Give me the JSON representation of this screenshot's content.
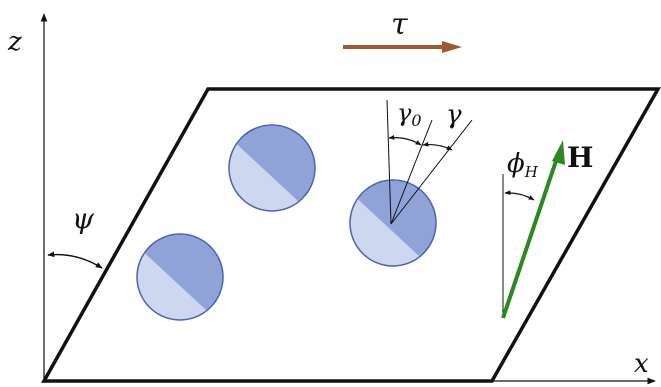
{
  "labels": {
    "z_axis": "z",
    "x_axis": "x",
    "tau": "τ",
    "psi": "ψ",
    "gamma0_main": "γ",
    "gamma0_sub": "0",
    "gamma": "γ",
    "phi_main": "ϕ",
    "phi_sub": "H",
    "H": "H"
  },
  "colors": {
    "line": "#111111",
    "tau_arrow": "#9c5a2e",
    "field_arrow": "#2a8a1f",
    "particle_dark": "#8fa3d9",
    "particle_light": "#cdd7f0",
    "particle_edge": "#4a63b5"
  }
}
